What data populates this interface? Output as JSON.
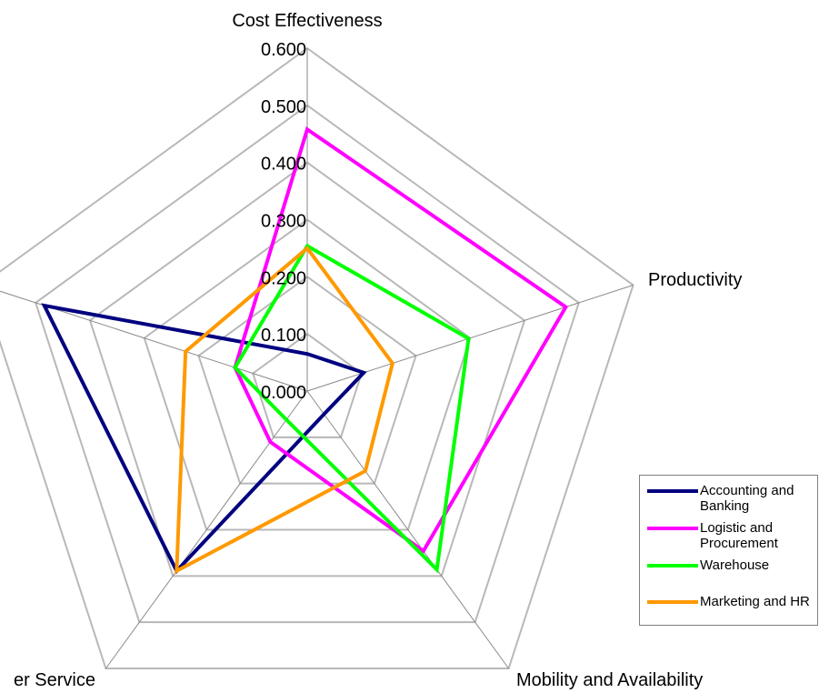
{
  "chart_data": {
    "type": "radar",
    "axes": [
      "Cost Effectiveness",
      "Productivity",
      "Mobility and Availability",
      "Customer Service",
      ""
    ],
    "axis_label_display": [
      "Cost Effectiveness",
      "Productivity",
      "Mobility and Availability",
      "er Service",
      ""
    ],
    "tick_labels": [
      "0.000",
      "0.100",
      "0.200",
      "0.300",
      "0.400",
      "0.500",
      "0.600"
    ],
    "rlim": [
      0,
      0.6
    ],
    "grid": true,
    "legend_position": "right",
    "series": [
      {
        "name": "Accounting and Banking",
        "color": "#000080",
        "values": [
          0.065,
          0.104,
          0.05,
          0.389,
          0.484
        ]
      },
      {
        "name": "Logistic and Procurement",
        "color": "#ff00ff",
        "values": [
          0.458,
          0.476,
          0.346,
          0.11,
          0.133
        ]
      },
      {
        "name": "Warehouse",
        "color": "#00ff00",
        "values": [
          0.254,
          0.297,
          0.386,
          0.062,
          0.133
        ]
      },
      {
        "name": "Marketing and HR",
        "color": "#ff9900",
        "values": [
          0.25,
          0.157,
          0.173,
          0.389,
          0.224
        ]
      }
    ]
  },
  "legend": {
    "items": [
      {
        "label": "Accounting and Banking",
        "color": "#000080"
      },
      {
        "label": "Logistic and Procurement",
        "color": "#ff00ff"
      },
      {
        "label": "Warehouse",
        "color": "#00ff00"
      },
      {
        "label": "Marketing and HR",
        "color": "#ff9900"
      }
    ]
  }
}
